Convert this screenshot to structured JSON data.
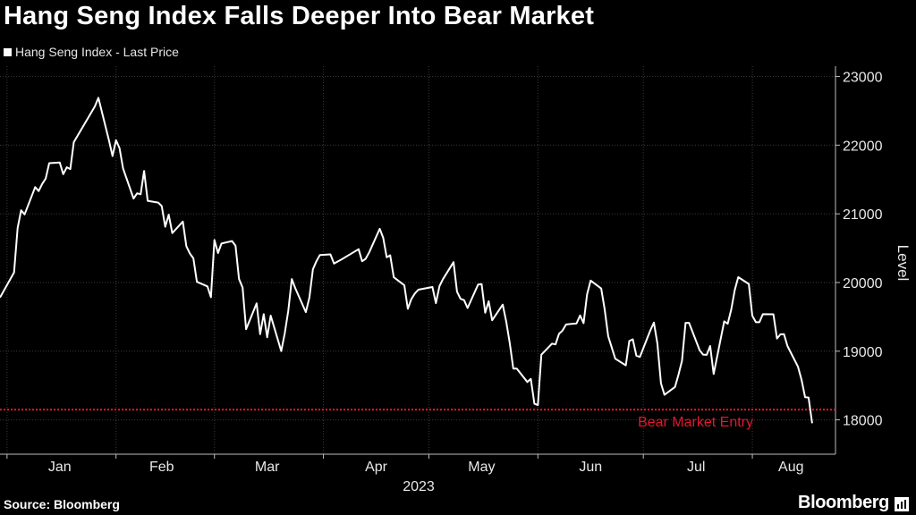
{
  "title": "Hang Seng Index Falls Deeper Into Bear Market",
  "source": "Source: Bloomberg",
  "brand": "Bloomberg",
  "colors": {
    "background": "#000000",
    "line": "#ffffff",
    "threshold": "#e2182e",
    "grid": "#3a3a3a",
    "axis_text": "#e8e8e8"
  },
  "chart_data": {
    "type": "line",
    "xlabel": "2023",
    "ylabel": "Level",
    "y_axis_side": "right",
    "ylim": [
      17500,
      23150
    ],
    "y_ticks": [
      18000,
      19000,
      20000,
      21000,
      22000,
      23000
    ],
    "x_start": "2022-12-30",
    "x_end": "2023-08-16",
    "x_ticks": [
      {
        "label": "Jan",
        "date": "2023-01-16"
      },
      {
        "label": "Feb",
        "date": "2023-02-14"
      },
      {
        "label": "Mar",
        "date": "2023-03-16"
      },
      {
        "label": "Apr",
        "date": "2023-04-16"
      },
      {
        "label": "May",
        "date": "2023-05-16"
      },
      {
        "label": "Jun",
        "date": "2023-06-16"
      },
      {
        "label": "Jul",
        "date": "2023-07-16"
      },
      {
        "label": "Aug",
        "date": "2023-08-12"
      }
    ],
    "grid_dates": [
      "2023-01-01",
      "2023-02-01",
      "2023-03-01",
      "2023-04-01",
      "2023-05-01",
      "2023-06-01",
      "2023-07-01",
      "2023-08-01"
    ],
    "grid": true,
    "legend_position": "top-left",
    "series": [
      {
        "name": "Hang Seng Index - Last Price",
        "points": [
          [
            "2022-12-30",
            19781
          ],
          [
            "2023-01-03",
            20145
          ],
          [
            "2023-01-04",
            20793
          ],
          [
            "2023-01-05",
            21052
          ],
          [
            "2023-01-06",
            20991
          ],
          [
            "2023-01-09",
            21388
          ],
          [
            "2023-01-10",
            21331
          ],
          [
            "2023-01-11",
            21436
          ],
          [
            "2023-01-12",
            21514
          ],
          [
            "2023-01-13",
            21738
          ],
          [
            "2023-01-16",
            21746
          ],
          [
            "2023-01-17",
            21577
          ],
          [
            "2023-01-18",
            21678
          ],
          [
            "2023-01-19",
            21651
          ],
          [
            "2023-01-20",
            22044
          ],
          [
            "2023-01-26",
            22566
          ],
          [
            "2023-01-27",
            22689
          ],
          [
            "2023-01-30",
            22070
          ],
          [
            "2023-01-31",
            21842
          ],
          [
            "2023-02-01",
            22072
          ],
          [
            "2023-02-02",
            21958
          ],
          [
            "2023-02-03",
            21660
          ],
          [
            "2023-02-06",
            21222
          ],
          [
            "2023-02-07",
            21299
          ],
          [
            "2023-02-08",
            21284
          ],
          [
            "2023-02-09",
            21624
          ],
          [
            "2023-02-10",
            21190
          ],
          [
            "2023-02-13",
            21164
          ],
          [
            "2023-02-14",
            21113
          ],
          [
            "2023-02-15",
            20812
          ],
          [
            "2023-02-16",
            20987
          ],
          [
            "2023-02-17",
            20719
          ],
          [
            "2023-02-20",
            20887
          ],
          [
            "2023-02-21",
            20529
          ],
          [
            "2023-02-22",
            20424
          ],
          [
            "2023-02-23",
            20351
          ],
          [
            "2023-02-24",
            20010
          ],
          [
            "2023-02-27",
            19943
          ],
          [
            "2023-02-28",
            19786
          ],
          [
            "2023-03-01",
            20619
          ],
          [
            "2023-03-02",
            20429
          ],
          [
            "2023-03-03",
            20567
          ],
          [
            "2023-03-06",
            20603
          ],
          [
            "2023-03-07",
            20534
          ],
          [
            "2023-03-08",
            20051
          ],
          [
            "2023-03-09",
            19926
          ],
          [
            "2023-03-10",
            19320
          ],
          [
            "2023-03-13",
            19696
          ],
          [
            "2023-03-14",
            19247
          ],
          [
            "2023-03-15",
            19539
          ],
          [
            "2023-03-16",
            19203
          ],
          [
            "2023-03-17",
            19518
          ],
          [
            "2023-03-20",
            19001
          ],
          [
            "2023-03-21",
            19259
          ],
          [
            "2023-03-22",
            19591
          ],
          [
            "2023-03-23",
            20050
          ],
          [
            "2023-03-24",
            19916
          ],
          [
            "2023-03-27",
            19568
          ],
          [
            "2023-03-28",
            19784
          ],
          [
            "2023-03-29",
            20192
          ],
          [
            "2023-03-30",
            20309
          ],
          [
            "2023-03-31",
            20400
          ],
          [
            "2023-04-03",
            20410
          ],
          [
            "2023-04-04",
            20275
          ],
          [
            "2023-04-06",
            20332
          ],
          [
            "2023-04-11",
            20485
          ],
          [
            "2023-04-12",
            20310
          ],
          [
            "2023-04-13",
            20344
          ],
          [
            "2023-04-14",
            20438
          ],
          [
            "2023-04-17",
            20782
          ],
          [
            "2023-04-18",
            20650
          ],
          [
            "2023-04-19",
            20367
          ],
          [
            "2023-04-20",
            20397
          ],
          [
            "2023-04-21",
            20076
          ],
          [
            "2023-04-24",
            19959
          ],
          [
            "2023-04-25",
            19617
          ],
          [
            "2023-04-26",
            19757
          ],
          [
            "2023-04-27",
            19841
          ],
          [
            "2023-04-28",
            19895
          ],
          [
            "2023-05-02",
            19934
          ],
          [
            "2023-05-03",
            19700
          ],
          [
            "2023-05-04",
            19948
          ],
          [
            "2023-05-05",
            20049
          ],
          [
            "2023-05-08",
            20297
          ],
          [
            "2023-05-09",
            19867
          ],
          [
            "2023-05-10",
            19762
          ],
          [
            "2023-05-11",
            19743
          ],
          [
            "2023-05-12",
            19628
          ],
          [
            "2023-05-15",
            19971
          ],
          [
            "2023-05-16",
            19978
          ],
          [
            "2023-05-17",
            19560
          ],
          [
            "2023-05-18",
            19727
          ],
          [
            "2023-05-19",
            19450
          ],
          [
            "2023-05-22",
            19678
          ],
          [
            "2023-05-23",
            19431
          ],
          [
            "2023-05-24",
            19116
          ],
          [
            "2023-05-25",
            18746
          ],
          [
            "2023-05-26",
            18746
          ],
          [
            "2023-05-29",
            18551
          ],
          [
            "2023-05-30",
            18596
          ],
          [
            "2023-05-31",
            18234
          ],
          [
            "2023-06-01",
            18216
          ],
          [
            "2023-06-02",
            18949
          ],
          [
            "2023-06-05",
            19109
          ],
          [
            "2023-06-06",
            19099
          ],
          [
            "2023-06-07",
            19252
          ],
          [
            "2023-06-08",
            19299
          ],
          [
            "2023-06-09",
            19389
          ],
          [
            "2023-06-12",
            19404
          ],
          [
            "2023-06-13",
            19521
          ],
          [
            "2023-06-14",
            19408
          ],
          [
            "2023-06-15",
            19828
          ],
          [
            "2023-06-16",
            20028
          ],
          [
            "2023-06-19",
            19912
          ],
          [
            "2023-06-20",
            19607
          ],
          [
            "2023-06-21",
            19218
          ],
          [
            "2023-06-23",
            18890
          ],
          [
            "2023-06-26",
            18794
          ],
          [
            "2023-06-27",
            19148
          ],
          [
            "2023-06-28",
            19173
          ],
          [
            "2023-06-29",
            18934
          ],
          [
            "2023-06-30",
            18916
          ],
          [
            "2023-07-03",
            19306
          ],
          [
            "2023-07-04",
            19416
          ],
          [
            "2023-07-05",
            19110
          ],
          [
            "2023-07-06",
            18533
          ],
          [
            "2023-07-07",
            18365
          ],
          [
            "2023-07-10",
            18479
          ],
          [
            "2023-07-11",
            18659
          ],
          [
            "2023-07-12",
            18860
          ],
          [
            "2023-07-13",
            19413
          ],
          [
            "2023-07-14",
            19413
          ],
          [
            "2023-07-17",
            19015
          ],
          [
            "2023-07-18",
            18950
          ],
          [
            "2023-07-19",
            18946
          ],
          [
            "2023-07-20",
            19075
          ],
          [
            "2023-07-21",
            18668
          ],
          [
            "2023-07-24",
            19435
          ],
          [
            "2023-07-25",
            19400
          ],
          [
            "2023-07-26",
            19609
          ],
          [
            "2023-07-27",
            19892
          ],
          [
            "2023-07-28",
            20078
          ],
          [
            "2023-07-31",
            19979
          ],
          [
            "2023-08-01",
            19517
          ],
          [
            "2023-08-02",
            19421
          ],
          [
            "2023-08-03",
            19421
          ],
          [
            "2023-08-04",
            19539
          ],
          [
            "2023-08-07",
            19537
          ],
          [
            "2023-08-08",
            19184
          ],
          [
            "2023-08-09",
            19246
          ],
          [
            "2023-08-10",
            19249
          ],
          [
            "2023-08-11",
            19075
          ],
          [
            "2023-08-14",
            18773
          ],
          [
            "2023-08-15",
            18581
          ],
          [
            "2023-08-16",
            18330
          ],
          [
            "2023-08-17",
            18326
          ],
          [
            "2023-08-18",
            17950
          ]
        ]
      }
    ],
    "thresholds": [
      {
        "label": "Bear Market Entry",
        "value": 18150
      }
    ]
  }
}
